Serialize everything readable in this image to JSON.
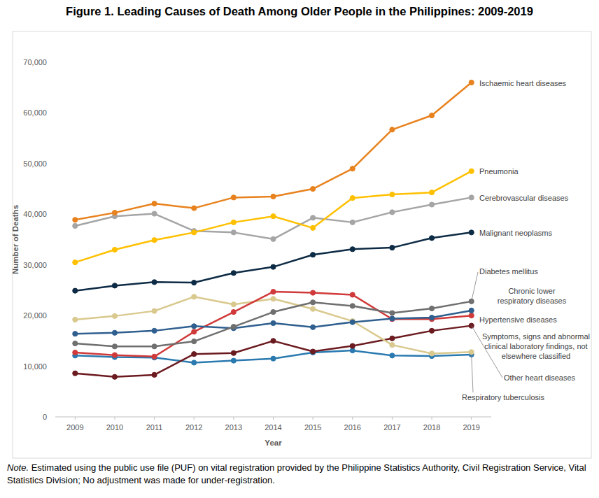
{
  "chart_data": {
    "type": "line",
    "title": "Figure 1. Leading Causes of Death Among Older People in the Philippines: 2009-2019",
    "x_label": "Year",
    "y_label": "Number of Deaths",
    "note_label": "Note.",
    "note": "Estimated using the public use file (PUF) on vital registration provided by the Philippine Statistics Authority, Civil Registration Service, Vital Statistics Division; No adjustment was made for under-registration.",
    "x": [
      2009,
      2010,
      2011,
      2012,
      2013,
      2014,
      2015,
      2016,
      2017,
      2018,
      2019
    ],
    "xlim": [
      2008.5,
      2019.5
    ],
    "xticks": [
      2009,
      2010,
      2011,
      2012,
      2013,
      2014,
      2015,
      2016,
      2017,
      2018,
      2019
    ],
    "ylim": [
      0,
      70000
    ],
    "yticks": [
      0,
      {
        "value": 10000,
        "label": "10,000"
      },
      {
        "value": 20000,
        "label": "20,000"
      },
      {
        "value": 30000,
        "label": "30,000"
      },
      {
        "value": 40000,
        "label": "40,000"
      },
      {
        "value": 50000,
        "label": "50,000"
      },
      {
        "value": 60000,
        "label": "60,000"
      },
      {
        "value": 70000,
        "label": "70,000"
      }
    ],
    "grid": false,
    "marker": "circle",
    "series": [
      {
        "name": "Ischaemic heart diseases",
        "color": "#e8821e",
        "values": [
          38900,
          40300,
          42100,
          41200,
          43300,
          43500,
          45000,
          49000,
          56700,
          59500,
          66000
        ]
      },
      {
        "name": "Pneumonia",
        "color": "#ffc000",
        "values": [
          30500,
          33000,
          34900,
          36400,
          38400,
          39600,
          37300,
          43200,
          43900,
          44300,
          48500
        ]
      },
      {
        "name": "Cerebrovascular diseases",
        "color": "#a5a5a5",
        "values": [
          37700,
          39600,
          40100,
          36700,
          36400,
          35100,
          39300,
          38400,
          40400,
          41900,
          43300
        ]
      },
      {
        "name": "Malignant neoplasms",
        "color": "#0d2b45",
        "values": [
          24900,
          25900,
          26600,
          26500,
          28400,
          29600,
          32000,
          33100,
          33400,
          35300,
          36400
        ]
      },
      {
        "name": "Diabetes mellitus",
        "color": "#6f6f6f",
        "values": [
          14500,
          13900,
          13900,
          14900,
          17800,
          20700,
          22600,
          21900,
          20500,
          21400,
          22800
        ]
      },
      {
        "name": "Chronic lower respiratory diseases",
        "color": "#2f5f8f",
        "values": [
          16400,
          16600,
          17000,
          17900,
          17500,
          18500,
          17700,
          18700,
          19400,
          19600,
          21000
        ]
      },
      {
        "name": "Hypertensive diseases",
        "color": "#d03a3a",
        "values": [
          12700,
          12200,
          11900,
          16800,
          20700,
          24700,
          24500,
          24100,
          19300,
          19300,
          20000
        ]
      },
      {
        "name": "Symptoms, signs and abnormal clinical laboratory findings, not elsewhere classified",
        "color": "#d9c98e",
        "values": [
          19200,
          19900,
          20900,
          23700,
          22200,
          23300,
          21300,
          18900,
          14200,
          12500,
          12800
        ]
      },
      {
        "name": "Other heart diseases",
        "color": "#6b1a1f",
        "values": [
          8600,
          7900,
          8300,
          12400,
          12600,
          15000,
          12900,
          14000,
          15500,
          17000,
          18000
        ]
      },
      {
        "name": "Respiratory tuberculosis",
        "color": "#2a7ab0",
        "values": [
          12100,
          11800,
          11700,
          10700,
          11100,
          11500,
          12700,
          13100,
          12100,
          12000,
          12300
        ]
      }
    ]
  }
}
